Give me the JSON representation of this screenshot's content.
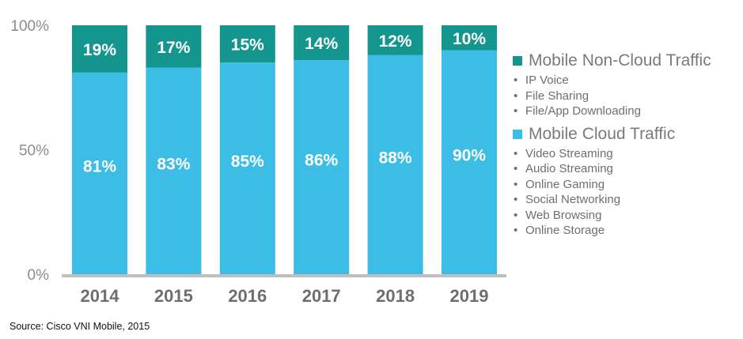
{
  "chart_data": {
    "type": "bar",
    "stacked": true,
    "categories": [
      "2014",
      "2015",
      "2016",
      "2017",
      "2018",
      "2019"
    ],
    "series": [
      {
        "name": "Mobile Cloud Traffic",
        "values": [
          81,
          83,
          85,
          86,
          88,
          90
        ],
        "labels": [
          "81%",
          "83%",
          "85%",
          "86%",
          "88%",
          "90%"
        ],
        "color": "#3cbde6"
      },
      {
        "name": "Mobile Non-Cloud Traffic",
        "values": [
          19,
          17,
          15,
          14,
          12,
          10
        ],
        "labels": [
          "19%",
          "17%",
          "15%",
          "14%",
          "12%",
          "10%"
        ],
        "color": "#14968f"
      }
    ],
    "yticks": [
      {
        "value": 0,
        "label": "0%"
      },
      {
        "value": 50,
        "label": "50%"
      },
      {
        "value": 100,
        "label": "100%"
      }
    ],
    "ylim": [
      0,
      100
    ],
    "grid": false,
    "legend_position": "right",
    "axis_color": "#bfbfbf",
    "label_color": "#ffffff",
    "category_label_color": "#6e6e6e",
    "tick_label_color": "#8c8c8c"
  },
  "legend": {
    "groups": [
      {
        "title": "Mobile Non-Cloud Traffic",
        "color": "#14968f",
        "items": [
          "IP Voice",
          "File Sharing",
          "File/App Downloading"
        ]
      },
      {
        "title": "Mobile Cloud Traffic",
        "color": "#3cbde6",
        "items": [
          "Video Streaming",
          "Audio Streaming",
          "Online Gaming",
          "Social Networking",
          "Web Browsing",
          "Online Storage"
        ]
      }
    ]
  },
  "bullet": "•",
  "source": "Source: Cisco VNI Mobile, 2015"
}
